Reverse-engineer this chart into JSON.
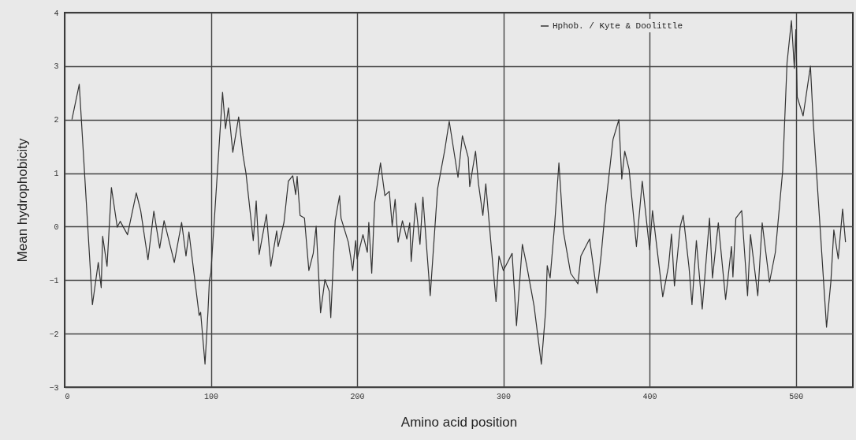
{
  "chart_data": {
    "type": "line",
    "xlabel": "Amino acid position",
    "ylabel": "Mean hydrophobicity",
    "xlim": [
      0,
      539
    ],
    "ylim": [
      -3,
      4
    ],
    "xticks": [
      0,
      100,
      200,
      300,
      400,
      500
    ],
    "yticks": [
      -3,
      -2,
      -1,
      0,
      1,
      2,
      3,
      4
    ],
    "grid": true,
    "legend": "top right",
    "series": [
      {
        "name": "Hphob. / Kyte & Doolittle",
        "color": "#333333",
        "x": [
          5,
          10,
          19,
          23,
          25,
          26,
          29,
          32,
          36,
          38,
          43,
          49,
          52,
          57,
          61,
          65,
          68,
          75,
          80,
          83,
          85,
          92,
          93,
          96,
          98,
          99,
          100,
          108,
          110,
          112,
          115,
          119,
          122,
          124,
          129,
          131,
          133,
          138,
          141,
          145,
          146,
          150,
          153,
          156,
          158,
          159,
          161,
          164,
          167,
          170,
          172,
          175,
          178,
          181,
          182,
          185,
          188,
          189,
          194,
          197,
          199,
          200,
          204,
          207,
          208,
          210,
          212,
          216,
          219,
          222,
          224,
          226,
          228,
          231,
          234,
          236,
          237,
          240,
          243,
          245,
          250,
          255,
          260,
          263,
          269,
          272,
          276,
          277,
          281,
          283,
          286,
          288,
          295,
          297,
          300,
          306,
          309,
          313,
          316,
          321,
          326,
          329,
          330,
          332,
          335,
          338,
          341,
          346,
          351,
          353,
          359,
          364,
          367,
          370,
          375,
          379,
          381,
          383,
          386,
          391,
          395,
          400,
          402,
          409,
          413,
          415,
          417,
          421,
          423,
          427,
          429,
          432,
          436,
          441,
          443,
          447,
          452,
          456,
          457,
          459,
          463,
          467,
          469,
          474,
          477,
          482,
          486,
          491,
          494,
          497,
          499,
          500,
          501,
          505,
          510,
          512,
          517,
          521,
          524,
          526,
          529,
          532,
          534
        ],
        "values": [
          2.0,
          2.66,
          -1.46,
          -0.67,
          -1.14,
          -0.18,
          -0.74,
          0.73,
          -0.01,
          0.1,
          -0.15,
          0.63,
          0.3,
          -0.62,
          0.29,
          -0.4,
          0.11,
          -0.67,
          0.08,
          -0.55,
          -0.1,
          -1.66,
          -1.6,
          -2.57,
          -1.6,
          -1.0,
          -0.87,
          2.51,
          1.83,
          2.22,
          1.39,
          2.05,
          1.33,
          1.0,
          -0.26,
          0.48,
          -0.52,
          0.23,
          -0.74,
          -0.08,
          -0.37,
          0.08,
          0.85,
          0.95,
          0.6,
          0.94,
          0.21,
          0.16,
          -0.82,
          -0.5,
          0.01,
          -1.61,
          -0.99,
          -1.21,
          -1.7,
          0.11,
          0.58,
          0.16,
          -0.29,
          -0.82,
          -0.26,
          -0.6,
          -0.15,
          -0.48,
          0.08,
          -0.87,
          0.45,
          1.19,
          0.58,
          0.66,
          0.01,
          0.51,
          -0.29,
          0.11,
          -0.23,
          0.07,
          -0.65,
          0.44,
          -0.33,
          0.55,
          -1.29,
          0.7,
          1.44,
          1.97,
          0.92,
          1.7,
          1.29,
          0.75,
          1.41,
          0.8,
          0.21,
          0.8,
          -1.4,
          -0.55,
          -0.82,
          -0.5,
          -1.85,
          -0.33,
          -0.73,
          -1.48,
          -2.57,
          -1.55,
          -0.73,
          -0.96,
          0.01,
          1.19,
          -0.08,
          -0.87,
          -1.07,
          -0.55,
          -0.23,
          -1.24,
          -0.5,
          0.41,
          1.63,
          2.0,
          0.89,
          1.41,
          1.07,
          -0.37,
          0.85,
          -0.43,
          0.3,
          -1.31,
          -0.73,
          -0.14,
          -1.11,
          0.01,
          0.21,
          -0.77,
          -1.46,
          -0.26,
          -1.54,
          0.16,
          -0.96,
          0.07,
          -1.36,
          -0.37,
          -0.94,
          0.16,
          0.3,
          -1.29,
          -0.15,
          -1.29,
          0.07,
          -1.04,
          -0.48,
          1.04,
          3.06,
          3.85,
          2.96,
          3.68,
          2.42,
          2.07,
          3.0,
          1.92,
          -0.18,
          -1.88,
          -1.02,
          -0.06,
          -0.6,
          0.33,
          -0.29
        ]
      }
    ]
  }
}
